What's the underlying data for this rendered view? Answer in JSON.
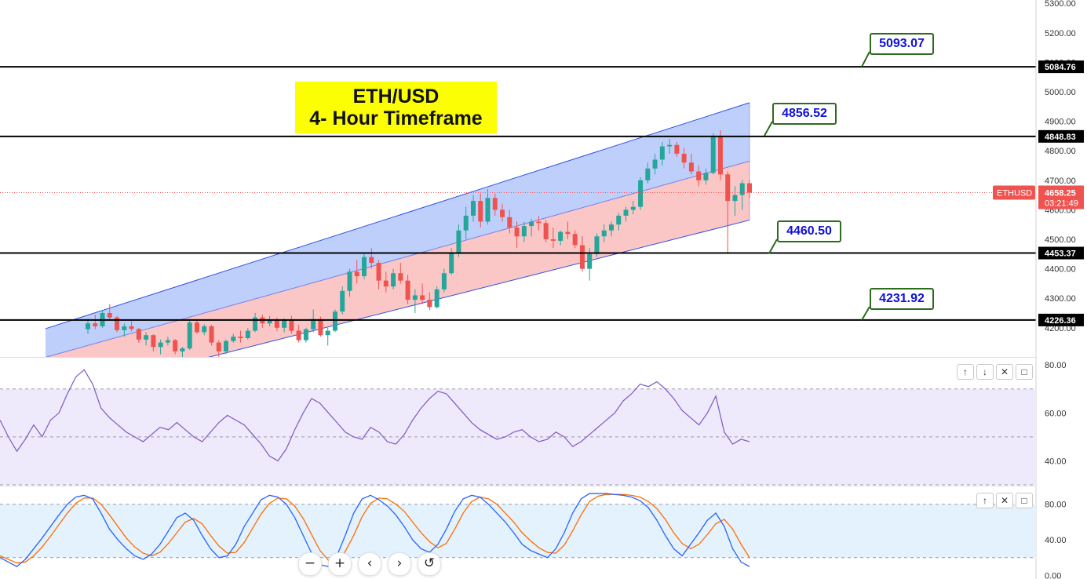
{
  "title": {
    "line1": "ETH/USD",
    "line2": "4- Hour Timeframe"
  },
  "colors": {
    "bull": "#26a69a",
    "bear": "#ef5350",
    "channel_upper": "#bcccfb",
    "channel_lower": "#fac3c3",
    "channel_line": "#2c4fe8",
    "rsi": "#7e57c2",
    "rsi_band": "#efeafb",
    "stoch_k": "#2962ff",
    "stoch_d": "#ff6d00",
    "stoch_band": "#e3f2fd",
    "callout_text": "#1010d8",
    "callout_border": "#2e6b1f",
    "title_bg": "#fcff03",
    "price_badge": "#ef5350"
  },
  "chart_data": [
    {
      "type": "candlestick",
      "title": "ETH/USD 4- Hour Timeframe",
      "symbol": "ETHUSD",
      "last_price": "4658.25",
      "countdown": "03:21:49",
      "y_ticks": [
        "5300.00",
        "5200.00",
        "5100.00",
        "5000.00",
        "4900.00",
        "4800.00",
        "4700.00",
        "4600.00",
        "4500.00",
        "4400.00",
        "4300.00",
        "4200.00"
      ],
      "ylim": [
        4180,
        5300
      ],
      "horizontal_levels": [
        "5084.76",
        "4848.83",
        "4453.37",
        "4226.36"
      ],
      "callouts": [
        "5093.07",
        "4856.52",
        "4460.50",
        "4231.92"
      ],
      "channel": {
        "upper_start": [
          0,
          4197
        ],
        "upper_end": [
          100,
          4963
        ],
        "mid_start": [
          0,
          4100
        ],
        "mid_end": [
          100,
          4765
        ],
        "lower_start": [
          0,
          3960
        ],
        "lower_end": [
          100,
          4565
        ]
      },
      "candles": [
        [
          4195,
          4230,
          4180,
          4215
        ],
        [
          4215,
          4245,
          4195,
          4205
        ],
        [
          4205,
          4260,
          4200,
          4250
        ],
        [
          4250,
          4280,
          4225,
          4235
        ],
        [
          4235,
          4240,
          4185,
          4192
        ],
        [
          4192,
          4215,
          4170,
          4205
        ],
        [
          4205,
          4222,
          4188,
          4196
        ],
        [
          4196,
          4200,
          4150,
          4160
        ],
        [
          4160,
          4185,
          4140,
          4175
        ],
        [
          4175,
          4178,
          4120,
          4135
        ],
        [
          4135,
          4160,
          4110,
          4150
        ],
        [
          4150,
          4170,
          4140,
          4158
        ],
        [
          4158,
          4162,
          4110,
          4120
        ],
        [
          4120,
          4135,
          4090,
          4130
        ],
        [
          4130,
          4230,
          4125,
          4218
        ],
        [
          4218,
          4225,
          4180,
          4185
        ],
        [
          4185,
          4212,
          4175,
          4205
        ],
        [
          4205,
          4210,
          4140,
          4150
        ],
        [
          4150,
          4158,
          4100,
          4120
        ],
        [
          4120,
          4160,
          4110,
          4155
        ],
        [
          4155,
          4180,
          4150,
          4170
        ],
        [
          4170,
          4190,
          4150,
          4165
        ],
        [
          4165,
          4200,
          4160,
          4190
        ],
        [
          4190,
          4250,
          4185,
          4235
        ],
        [
          4235,
          4245,
          4200,
          4215
        ],
        [
          4215,
          4240,
          4205,
          4225
        ],
        [
          4225,
          4235,
          4190,
          4200
        ],
        [
          4200,
          4232,
          4185,
          4225
        ],
        [
          4225,
          4240,
          4180,
          4190
        ],
        [
          4190,
          4210,
          4150,
          4158
        ],
        [
          4158,
          4200,
          4150,
          4195
        ],
        [
          4195,
          4262,
          4185,
          4230
        ],
        [
          4230,
          4238,
          4170,
          4175
        ],
        [
          4175,
          4200,
          4140,
          4190
        ],
        [
          4190,
          4262,
          4185,
          4255
        ],
        [
          4255,
          4340,
          4245,
          4325
        ],
        [
          4325,
          4400,
          4305,
          4390
        ],
        [
          4390,
          4430,
          4350,
          4375
        ],
        [
          4375,
          4450,
          4365,
          4440
        ],
        [
          4440,
          4470,
          4400,
          4420
        ],
        [
          4420,
          4430,
          4330,
          4360
        ],
        [
          4360,
          4390,
          4320,
          4340
        ],
        [
          4340,
          4400,
          4330,
          4385
        ],
        [
          4385,
          4420,
          4350,
          4360
        ],
        [
          4360,
          4380,
          4280,
          4295
        ],
        [
          4295,
          4330,
          4250,
          4310
        ],
        [
          4310,
          4350,
          4280,
          4295
        ],
        [
          4295,
          4320,
          4260,
          4270
        ],
        [
          4270,
          4340,
          4265,
          4330
        ],
        [
          4330,
          4400,
          4320,
          4385
        ],
        [
          4385,
          4470,
          4380,
          4455
        ],
        [
          4455,
          4550,
          4440,
          4530
        ],
        [
          4530,
          4610,
          4500,
          4580
        ],
        [
          4580,
          4650,
          4560,
          4630
        ],
        [
          4630,
          4655,
          4540,
          4560
        ],
        [
          4560,
          4670,
          4550,
          4640
        ],
        [
          4640,
          4655,
          4580,
          4600
        ],
        [
          4600,
          4620,
          4560,
          4575
        ],
        [
          4575,
          4600,
          4520,
          4540
        ],
        [
          4540,
          4560,
          4470,
          4510
        ],
        [
          4510,
          4560,
          4490,
          4545
        ],
        [
          4545,
          4570,
          4510,
          4560
        ],
        [
          4560,
          4580,
          4530,
          4555
        ],
        [
          4555,
          4565,
          4490,
          4500
        ],
        [
          4500,
          4540,
          4470,
          4495
        ],
        [
          4495,
          4530,
          4480,
          4525
        ],
        [
          4525,
          4560,
          4500,
          4518
        ],
        [
          4518,
          4530,
          4470,
          4480
        ],
        [
          4480,
          4510,
          4390,
          4400
        ],
        [
          4400,
          4470,
          4360,
          4450
        ],
        [
          4450,
          4520,
          4440,
          4510
        ],
        [
          4510,
          4550,
          4490,
          4530
        ],
        [
          4530,
          4560,
          4510,
          4550
        ],
        [
          4550,
          4590,
          4530,
          4580
        ],
        [
          4580,
          4610,
          4560,
          4600
        ],
        [
          4600,
          4630,
          4585,
          4610
        ],
        [
          4610,
          4710,
          4600,
          4700
        ],
        [
          4700,
          4760,
          4690,
          4740
        ],
        [
          4740,
          4790,
          4720,
          4770
        ],
        [
          4770,
          4830,
          4750,
          4815
        ],
        [
          4815,
          4840,
          4790,
          4820
        ],
        [
          4820,
          4830,
          4780,
          4790
        ],
        [
          4790,
          4810,
          4740,
          4760
        ],
        [
          4760,
          4790,
          4720,
          4730
        ],
        [
          4730,
          4750,
          4680,
          4700
        ],
        [
          4700,
          4740,
          4685,
          4725
        ],
        [
          4725,
          4860,
          4720,
          4850
        ],
        [
          4850,
          4870,
          4700,
          4720
        ],
        [
          4720,
          4730,
          4450,
          4630
        ],
        [
          4630,
          4680,
          4580,
          4650
        ],
        [
          4650,
          4700,
          4600,
          4690
        ],
        [
          4690,
          4700,
          4640,
          4658
        ]
      ]
    },
    {
      "type": "line",
      "name": "RSI",
      "y_ticks": [
        "80.00",
        "60.00",
        "40.00"
      ],
      "ylim": [
        30,
        83
      ],
      "bands": [
        70,
        50,
        30
      ],
      "values": [
        57,
        50,
        44,
        49,
        55,
        50,
        57,
        60,
        68,
        75,
        78,
        72,
        62,
        58,
        55,
        52,
        50,
        48,
        51,
        54,
        53,
        56,
        53,
        50,
        48,
        52,
        56,
        59,
        57,
        55,
        51,
        47,
        42,
        40,
        45,
        53,
        60,
        66,
        64,
        60,
        56,
        52,
        50,
        49,
        54,
        52,
        48,
        47,
        51,
        57,
        62,
        66,
        69,
        68,
        64,
        60,
        56,
        53,
        51,
        49,
        50,
        52,
        53,
        50,
        48,
        49,
        52,
        50,
        46,
        48,
        51,
        54,
        57,
        60,
        65,
        68,
        72,
        71,
        73,
        70,
        66,
        61,
        58,
        55,
        60,
        67,
        52,
        47,
        49,
        48
      ],
      "grid": true
    },
    {
      "type": "line",
      "name": "Stochastic",
      "y_ticks": [
        "80.00",
        "40.00",
        "0.00"
      ],
      "ylim": [
        -4,
        100
      ],
      "bands": [
        80,
        20
      ],
      "k": [
        20,
        15,
        10,
        18,
        30,
        42,
        55,
        68,
        80,
        88,
        90,
        86,
        70,
        52,
        40,
        30,
        22,
        18,
        24,
        35,
        50,
        65,
        70,
        62,
        45,
        30,
        20,
        22,
        35,
        55,
        70,
        85,
        90,
        88,
        80,
        65,
        45,
        25,
        12,
        10,
        22,
        45,
        70,
        86,
        90,
        85,
        78,
        68,
        55,
        40,
        30,
        26,
        35,
        52,
        72,
        86,
        90,
        88,
        80,
        70,
        60,
        48,
        35,
        28,
        24,
        20,
        30,
        48,
        70,
        86,
        92,
        92,
        92,
        91,
        90,
        88,
        84,
        76,
        62,
        45,
        30,
        22,
        35,
        48,
        62,
        70,
        55,
        30,
        15,
        10
      ],
      "d": [
        22,
        18,
        14,
        15,
        22,
        32,
        44,
        57,
        70,
        81,
        87,
        87,
        80,
        68,
        55,
        42,
        32,
        25,
        22,
        26,
        36,
        48,
        60,
        64,
        58,
        45,
        33,
        25,
        26,
        37,
        53,
        69,
        81,
        87,
        86,
        78,
        64,
        46,
        28,
        17,
        16,
        27,
        45,
        66,
        81,
        87,
        86,
        80,
        72,
        60,
        48,
        38,
        31,
        36,
        52,
        70,
        83,
        88,
        86,
        80,
        70,
        60,
        48,
        39,
        31,
        26,
        25,
        34,
        50,
        68,
        83,
        89,
        91,
        91,
        91,
        90,
        88,
        83,
        75,
        63,
        48,
        36,
        30,
        35,
        46,
        58,
        63,
        52,
        35,
        20
      ],
      "grid": true
    }
  ],
  "pane_controls": {
    "up": "↑",
    "down": "↓",
    "close": "✕",
    "maximize": "□"
  },
  "nav_controls": {
    "zoom_out": "−",
    "zoom_in": "+",
    "scroll_left": "‹",
    "scroll_right": "›",
    "reset": "↺"
  }
}
